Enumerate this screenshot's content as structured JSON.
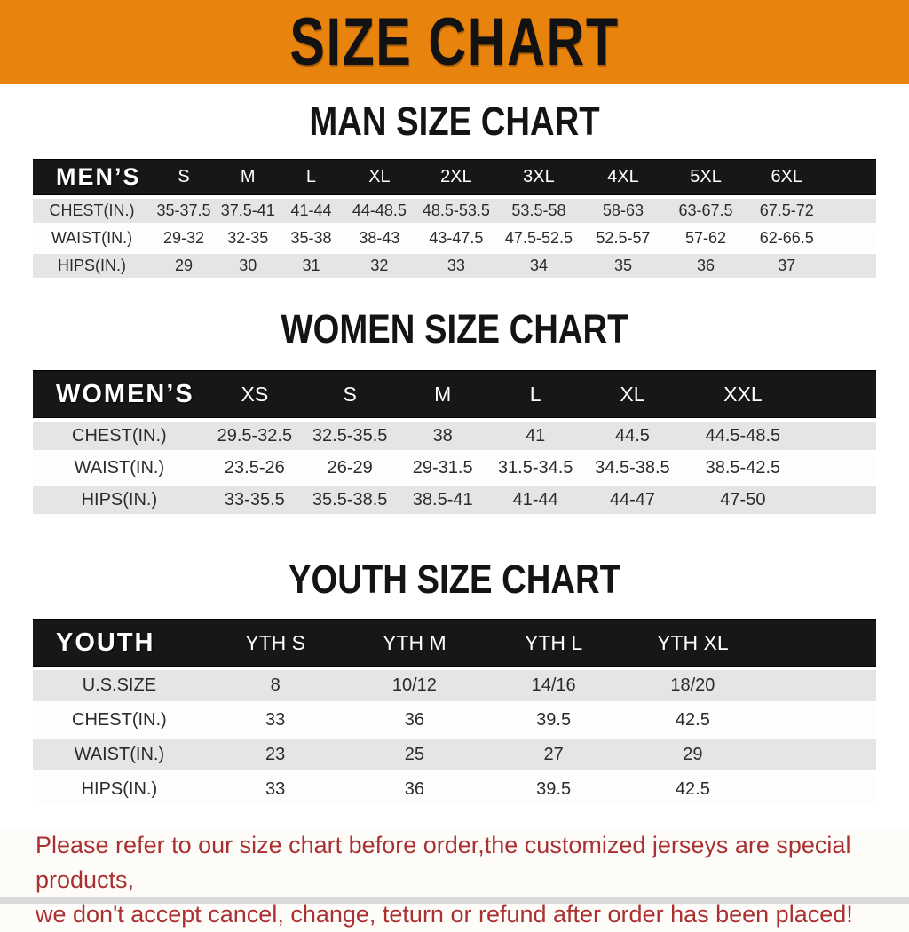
{
  "banner": {
    "title": "SIZE CHART",
    "background": "#e8830e",
    "text_color": "#121212"
  },
  "sections": [
    {
      "heading": "MAN SIZE CHART",
      "table": {
        "header_label": "MEN’S",
        "columns": [
          "S",
          "M",
          "L",
          "XL",
          "2XL",
          "3XL",
          "4XL",
          "5XL",
          "6XL"
        ],
        "rows": [
          {
            "label": "CHEST(IN.)",
            "values": [
              "35-37.5",
              "37.5-41",
              "41-44",
              "44-48.5",
              "48.5-53.5",
              "53.5-58",
              "58-63",
              "63-67.5",
              "67.5-72"
            ]
          },
          {
            "label": "WAIST(IN.)",
            "values": [
              "29-32",
              "32-35",
              "35-38",
              "38-43",
              "43-47.5",
              "47.5-52.5",
              "52.5-57",
              "57-62",
              "62-66.5"
            ]
          },
          {
            "label": "HIPS(IN.)",
            "values": [
              "29",
              "30",
              "31",
              "32",
              "33",
              "34",
              "35",
              "36",
              "37"
            ]
          }
        ]
      }
    },
    {
      "heading": "WOMEN SIZE CHART",
      "table": {
        "header_label": "WOMEN’S",
        "columns": [
          "XS",
          "S",
          "M",
          "L",
          "XL",
          "XXL"
        ],
        "rows": [
          {
            "label": "CHEST(IN.)",
            "values": [
              "29.5-32.5",
              "32.5-35.5",
              "38",
              "41",
              "44.5",
              "44.5-48.5"
            ]
          },
          {
            "label": "WAIST(IN.)",
            "values": [
              "23.5-26",
              "26-29",
              "29-31.5",
              "31.5-34.5",
              "34.5-38.5",
              "38.5-42.5"
            ]
          },
          {
            "label": "HIPS(IN.)",
            "values": [
              "33-35.5",
              "35.5-38.5",
              "38.5-41",
              "41-44",
              "44-47",
              "47-50"
            ]
          }
        ]
      }
    },
    {
      "heading": "YOUTH SIZE CHART",
      "table": {
        "header_label": "YOUTH",
        "columns": [
          "YTH S",
          "YTH M",
          "YTH L",
          "YTH XL"
        ],
        "rows": [
          {
            "label": "U.S.SIZE",
            "values": [
              "8",
              "10/12",
              "14/16",
              "18/20"
            ]
          },
          {
            "label": "CHEST(IN.)",
            "values": [
              "33",
              "36",
              "39.5",
              "42.5"
            ]
          },
          {
            "label": "WAIST(IN.)",
            "values": [
              "23",
              "25",
              "27",
              "29"
            ]
          },
          {
            "label": "HIPS(IN.)",
            "values": [
              "33",
              "36",
              "39.5",
              "42.5"
            ]
          }
        ]
      }
    }
  ],
  "footer": {
    "line1": "Please refer to our size chart before order,the customized jerseys are special products,",
    "line2": "we don't accept cancel, change, teturn or refund after order has been placed!",
    "text_color": "#a93132"
  },
  "colors": {
    "banner_orange": "#e8830e",
    "table_header_black": "#171717",
    "row_gray": "#e5e5e5",
    "row_white": "#fdfdfd",
    "notice_red": "#a93132",
    "bottom_strip_gray": "#d9d9d9"
  }
}
